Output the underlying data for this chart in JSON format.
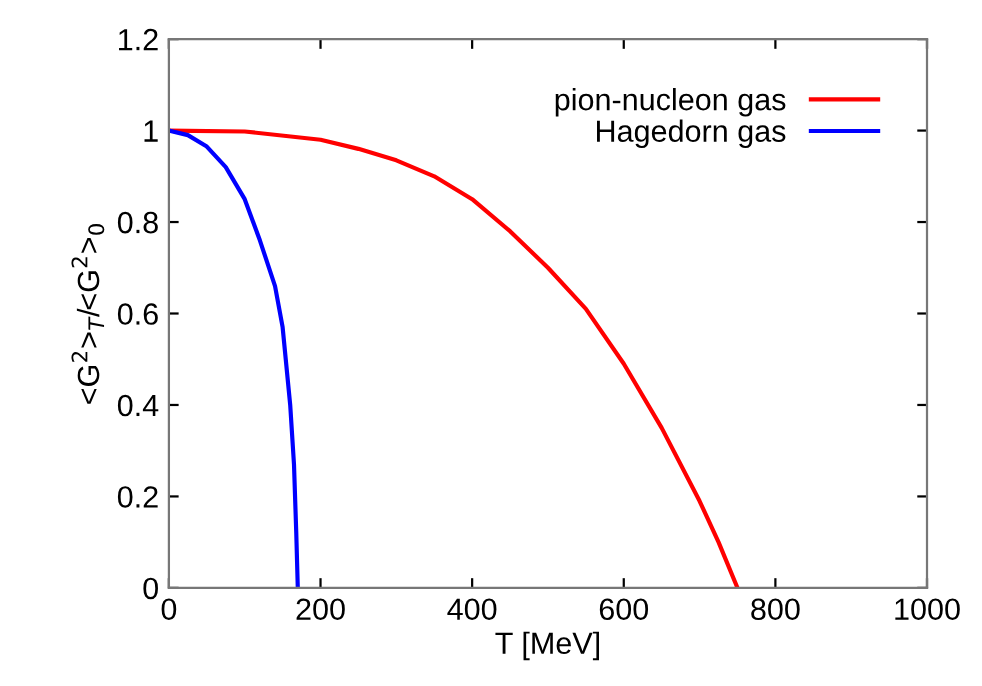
{
  "chart_data": {
    "type": "line",
    "xlabel": "T [MeV]",
    "ylabel": "<G$^{2}$>$_{T}$/<G$^{2}$>$_{0}$",
    "xlim": [
      0,
      1000
    ],
    "xticks": [
      0,
      200,
      400,
      600,
      800,
      1000
    ],
    "ylim": [
      0,
      1.2
    ],
    "yticks": [
      0,
      0.2,
      0.4,
      0.6,
      0.8,
      1,
      1.2
    ],
    "grid": false,
    "legend": "top right",
    "marker": "none",
    "line_style": "solid",
    "series": [
      {
        "name": "pion-nucleon gas",
        "color": "#ff0000",
        "x": [
          0,
          100,
          200,
          250,
          300,
          350,
          400,
          450,
          500,
          550,
          600,
          650,
          700,
          725,
          750
        ],
        "values": [
          1,
          0.998,
          0.98,
          0.96,
          0.935,
          0.9,
          0.85,
          0.78,
          0.7,
          0.61,
          0.49,
          0.35,
          0.19,
          0.1,
          0
        ]
      },
      {
        "name": "Hagedorn gas",
        "color": "#0000ff",
        "x": [
          0,
          25,
          50,
          75,
          100,
          120,
          140,
          150,
          160,
          165,
          168,
          170
        ],
        "values": [
          1,
          0.99,
          0.965,
          0.92,
          0.85,
          0.76,
          0.66,
          0.57,
          0.4,
          0.27,
          0.12,
          0
        ]
      }
    ]
  }
}
